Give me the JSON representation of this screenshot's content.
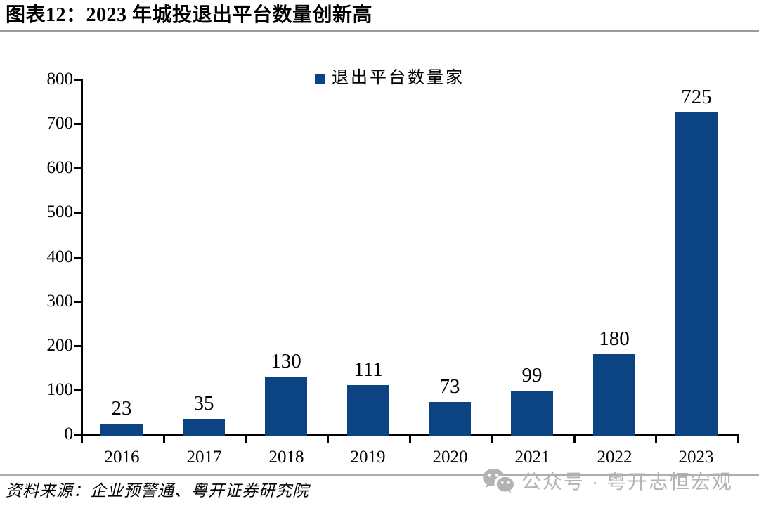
{
  "header": {
    "title": "图表12：2023 年城投退出平台数量创新高"
  },
  "chart_data": {
    "type": "bar",
    "title": "",
    "legend": [
      {
        "label": "退出平台数量家",
        "color": "#0C4483"
      }
    ],
    "legend_position": "top-center",
    "categories": [
      "2016",
      "2017",
      "2018",
      "2019",
      "2020",
      "2021",
      "2022",
      "2023"
    ],
    "values": [
      23,
      35,
      130,
      111,
      73,
      99,
      180,
      725
    ],
    "data_labels": [
      "23",
      "35",
      "130",
      "111",
      "73",
      "99",
      "180",
      "725"
    ],
    "xlabel": "",
    "ylabel": "",
    "ylim": [
      0,
      800
    ],
    "ytick_step": 100,
    "yticks": [
      0,
      100,
      200,
      300,
      400,
      500,
      600,
      700,
      800
    ],
    "grid": false,
    "bar_color": "#0C4483"
  },
  "footer": {
    "source": "资料来源：企业预警通、粤开证券研究院"
  },
  "watermark": {
    "icon": "wechat-icon",
    "text": "公众号 · 粤开志恒宏观"
  },
  "colors": {
    "bar": "#0C4483",
    "axis": "#000000",
    "title_rule": "#9B9B9B",
    "footer_rule": "#ADADAD",
    "watermark": "#B3B3B3",
    "text": "#000000"
  }
}
